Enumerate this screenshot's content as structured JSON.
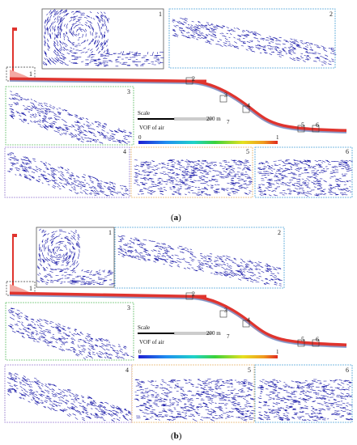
{
  "colors": {
    "pipe": "#e0342e",
    "pipe_inner": "#f6a09a",
    "vector": "#1a1aa8",
    "frame_grey": "#666666",
    "frame_blue": "#4fa3d8",
    "frame_green": "#67c26b",
    "frame_purple": "#9a7fd1",
    "frame_orange": "#e7b26a"
  },
  "panels": [
    {
      "caption": {
        "open": "(",
        "letter": "a",
        "close": ")"
      },
      "scale_label": "Scale",
      "scale_value": "200 m",
      "legend_title": "VOF  of air",
      "legend_min": "0",
      "legend_max": "1",
      "marker_labels": [
        "1",
        "2",
        "3",
        "4",
        "5",
        "6"
      ],
      "mini_marker": "7",
      "insets": [
        "1",
        "2",
        "3",
        "4",
        "5",
        "6"
      ]
    },
    {
      "caption": {
        "open": "(",
        "letter": "b",
        "close": ")"
      },
      "scale_label": "Scale",
      "scale_value": "200 m",
      "legend_title": "VOF  of air",
      "legend_min": "0",
      "legend_max": "1",
      "marker_labels": [
        "1",
        "2",
        "3",
        "4",
        "5",
        "6"
      ],
      "mini_marker": "7",
      "insets": [
        "1",
        "2",
        "3",
        "4",
        "5",
        "6"
      ]
    }
  ]
}
